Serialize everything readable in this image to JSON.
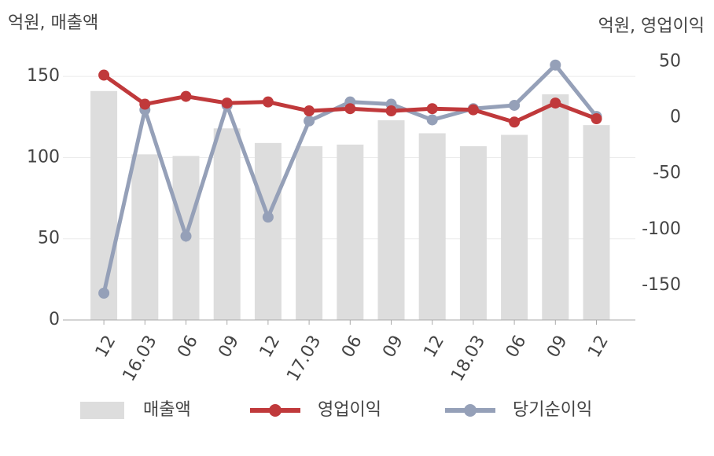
{
  "chart_data": {
    "type": "bar-line",
    "y_axis_label": "억원, 매출액",
    "y2_axis_label": "억원, 영업이익",
    "categories": [
      "12",
      "16.03",
      "06",
      "09",
      "12",
      "17.03",
      "06",
      "09",
      "12",
      "18.03",
      "06",
      "09",
      "12"
    ],
    "series": [
      {
        "name": "매출액",
        "type": "bar",
        "color": "#dddddd",
        "values": [
          141,
          102,
          101,
          118,
          109,
          107,
          108,
          123,
          115,
          107,
          114,
          139,
          120
        ]
      },
      {
        "name": "영업이익",
        "type": "line",
        "axis": "y2",
        "color": "#c0393b",
        "values": [
          38,
          12,
          19,
          13,
          14,
          6,
          8,
          6,
          8,
          7,
          -4,
          13,
          -1
        ]
      },
      {
        "name": "당기순이익",
        "type": "line",
        "axis": "y2",
        "color": "#95a0b8",
        "values": [
          -157,
          7,
          -106,
          11,
          -89,
          -3,
          14,
          12,
          -2,
          8,
          11,
          47,
          1
        ]
      }
    ],
    "ylim": [
      0,
      168
    ],
    "yticks": [
      0,
      50,
      100,
      150
    ],
    "y2lim": [
      -181,
      63
    ],
    "y2ticks": [
      -150,
      -100,
      -50,
      0,
      50
    ],
    "grid": true,
    "legend": "bottom"
  }
}
